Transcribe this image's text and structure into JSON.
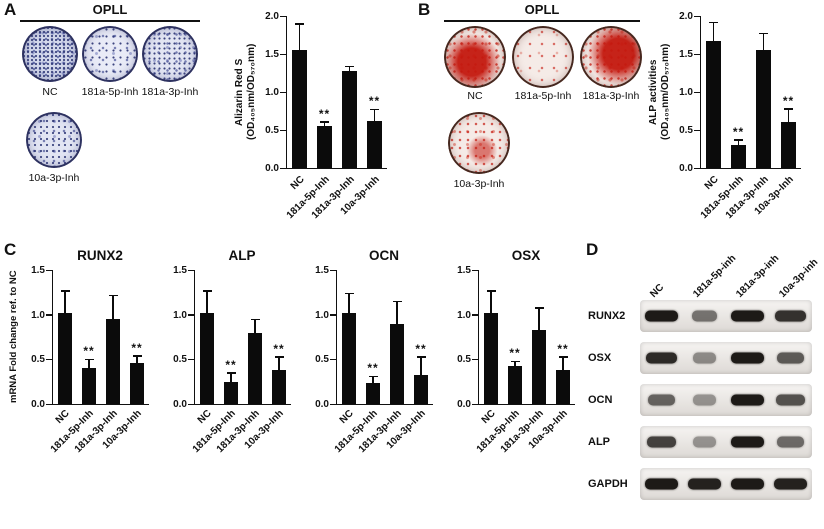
{
  "panels": {
    "A": {
      "label": "A",
      "header": "OPLL",
      "dishes": [
        "NC",
        "181a-5p-Inh",
        "181a-3p-Inh",
        "10a-3p-Inh"
      ]
    },
    "B": {
      "label": "B",
      "header": "OPLL",
      "dishes": [
        "NC",
        "181a-5p-Inh",
        "181a-3p-Inh",
        "10a-3p-Inh"
      ]
    },
    "C": {
      "label": "C"
    },
    "D": {
      "label": "D",
      "col_labels": [
        "NC",
        "181a-5p-inh",
        "181a-3p-inh",
        "10a-3p-inh"
      ],
      "rows": [
        {
          "label": "RUNX2",
          "bands": [
            0.95,
            0.4,
            0.95,
            0.8
          ]
        },
        {
          "label": "OSX",
          "bands": [
            0.85,
            0.25,
            0.95,
            0.55
          ]
        },
        {
          "label": "OCN",
          "bands": [
            0.5,
            0.2,
            0.95,
            0.6
          ]
        },
        {
          "label": "ALP",
          "bands": [
            0.7,
            0.2,
            0.95,
            0.45
          ]
        },
        {
          "label": "GAPDH",
          "bands": [
            0.95,
            0.9,
            0.95,
            0.9
          ]
        }
      ]
    }
  },
  "chart_data": [
    {
      "id": "alizarin",
      "type": "bar",
      "title": "",
      "ylabel": [
        "Alizarin Red S",
        "(OD₄₀₅nm/OD₅₇₀nm)"
      ],
      "categories": [
        "NC",
        "181a-5p-Inh",
        "181a-3p-Inh",
        "10a-3p-Inh"
      ],
      "values": [
        1.55,
        0.55,
        1.27,
        0.62
      ],
      "errors": [
        0.35,
        0.06,
        0.07,
        0.15
      ],
      "sig": [
        "",
        "**",
        "",
        "**"
      ],
      "ylim": [
        0,
        2
      ],
      "yticks": [
        0,
        0.5,
        1.0,
        1.5,
        2.0
      ]
    },
    {
      "id": "alp-activity",
      "type": "bar",
      "title": "",
      "ylabel": [
        "ALP activities",
        "(OD₄₀₅nm/OD₅₇₀nm)"
      ],
      "categories": [
        "NC",
        "181a-5p-Inh",
        "181a-3p-Inh",
        "10a-3p-Inh"
      ],
      "values": [
        1.67,
        0.3,
        1.55,
        0.6
      ],
      "errors": [
        0.25,
        0.07,
        0.22,
        0.18
      ],
      "sig": [
        "",
        "**",
        "",
        "**"
      ],
      "ylim": [
        0,
        2
      ],
      "yticks": [
        0,
        0.5,
        1.0,
        1.5,
        2.0
      ]
    },
    {
      "id": "runx2",
      "type": "bar",
      "title": "RUNX2",
      "ylabel": [
        "mRNA Fold change ref. to NC"
      ],
      "categories": [
        "NC",
        "181a-5p-Inh",
        "181a-3p-Inh",
        "10a-3p-Inh"
      ],
      "values": [
        1.02,
        0.4,
        0.95,
        0.46
      ],
      "errors": [
        0.25,
        0.1,
        0.27,
        0.08
      ],
      "sig": [
        "",
        "**",
        "",
        "**"
      ],
      "ylim": [
        0,
        1.5
      ],
      "yticks": [
        0,
        0.5,
        1.0,
        1.5
      ]
    },
    {
      "id": "alp-mrna",
      "type": "bar",
      "title": "ALP",
      "ylabel": [],
      "categories": [
        "NC",
        "181a-5p-Inh",
        "181a-3p-Inh",
        "10a-3p-Inh"
      ],
      "values": [
        1.02,
        0.25,
        0.8,
        0.38
      ],
      "errors": [
        0.25,
        0.1,
        0.15,
        0.15
      ],
      "sig": [
        "",
        "**",
        "",
        "**"
      ],
      "ylim": [
        0,
        1.5
      ],
      "yticks": [
        0,
        0.5,
        1.0,
        1.5
      ]
    },
    {
      "id": "ocn",
      "type": "bar",
      "title": "OCN",
      "ylabel": [],
      "categories": [
        "NC",
        "181a-5p-Inh",
        "181a-3p-Inh",
        "10a-3p-Inh"
      ],
      "values": [
        1.02,
        0.23,
        0.9,
        0.33
      ],
      "errors": [
        0.22,
        0.08,
        0.25,
        0.2
      ],
      "sig": [
        "",
        "**",
        "",
        "**"
      ],
      "ylim": [
        0,
        1.5
      ],
      "yticks": [
        0,
        0.5,
        1.0,
        1.5
      ]
    },
    {
      "id": "osx",
      "type": "bar",
      "title": "OSX",
      "ylabel": [],
      "categories": [
        "NC",
        "181a-5p-Inh",
        "181a-3p-Inh",
        "10a-3p-Inh"
      ],
      "values": [
        1.02,
        0.43,
        0.83,
        0.38
      ],
      "errors": [
        0.25,
        0.05,
        0.25,
        0.15
      ],
      "sig": [
        "",
        "**",
        "",
        "**"
      ],
      "ylim": [
        0,
        1.5
      ],
      "yticks": [
        0,
        0.5,
        1.0,
        1.5
      ]
    }
  ]
}
